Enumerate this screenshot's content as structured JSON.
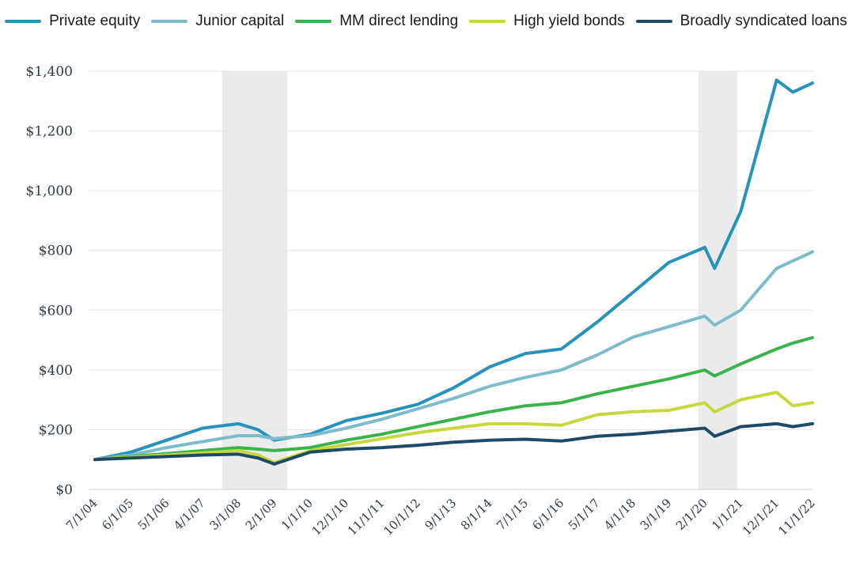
{
  "chart_data": {
    "type": "line",
    "title": "",
    "xlabel": "",
    "ylabel": "",
    "ylim": [
      0,
      1400
    ],
    "y_ticks": [
      0,
      200,
      400,
      600,
      800,
      1000,
      1200,
      1400
    ],
    "y_tick_labels": [
      "$0",
      "$200",
      "$400",
      "$600",
      "$800",
      "$1,000",
      "$1,200",
      "$1,400"
    ],
    "x_tick_labels": [
      "7/1/04",
      "6/1/05",
      "5/1/06",
      "4/1/07",
      "3/1/08",
      "2/1/09",
      "1/1/10",
      "12/1/10",
      "11/1/11",
      "10/1/12",
      "9/1/13",
      "8/1/14",
      "7/1/15",
      "6/1/16",
      "5/1/17",
      "4/1/18",
      "3/1/19",
      "2/1/20",
      "1/1/21",
      "12/1/21",
      "11/1/22"
    ],
    "x": [
      "7/1/04",
      "6/1/05",
      "5/1/06",
      "4/1/07",
      "3/1/08",
      "9/1/08",
      "2/1/09",
      "1/1/10",
      "12/1/10",
      "11/1/11",
      "10/1/12",
      "9/1/13",
      "8/1/14",
      "7/1/15",
      "6/1/16",
      "5/1/17",
      "4/1/18",
      "3/1/19",
      "2/1/20",
      "5/1/20",
      "1/1/21",
      "12/1/21",
      "5/1/22",
      "11/1/22"
    ],
    "grid": "horizontal",
    "legend_position": "top",
    "shaded_periods": [
      [
        "10/1/07",
        "6/1/09"
      ],
      [
        "12/1/19",
        "12/1/20"
      ]
    ],
    "series": [
      {
        "name": "Private equity",
        "color": "#2793bd",
        "values": [
          100,
          125,
          165,
          205,
          220,
          200,
          165,
          185,
          230,
          255,
          285,
          340,
          410,
          455,
          470,
          560,
          660,
          760,
          810,
          740,
          930,
          1370,
          1330,
          1360
        ]
      },
      {
        "name": "Junior capital",
        "color": "#7fbccb",
        "values": [
          100,
          115,
          140,
          160,
          180,
          180,
          170,
          180,
          205,
          235,
          270,
          305,
          345,
          375,
          400,
          450,
          510,
          545,
          580,
          550,
          600,
          740,
          765,
          795
        ]
      },
      {
        "name": "MM direct lending",
        "color": "#38b44a",
        "values": [
          100,
          110,
          120,
          130,
          140,
          135,
          130,
          140,
          165,
          185,
          210,
          235,
          260,
          280,
          290,
          320,
          345,
          370,
          400,
          380,
          420,
          470,
          490,
          508
        ]
      },
      {
        "name": "High yield bonds",
        "color": "#c8d83c",
        "values": [
          100,
          108,
          115,
          122,
          130,
          115,
          90,
          130,
          150,
          170,
          190,
          205,
          220,
          220,
          215,
          250,
          260,
          265,
          290,
          260,
          300,
          325,
          280,
          290
        ]
      },
      {
        "name": "Broadly syndicated loans",
        "color": "#1e4a66",
        "values": [
          100,
          105,
          110,
          115,
          118,
          105,
          85,
          125,
          135,
          140,
          148,
          158,
          165,
          168,
          162,
          178,
          185,
          195,
          205,
          178,
          210,
          220,
          210,
          220
        ]
      }
    ]
  }
}
